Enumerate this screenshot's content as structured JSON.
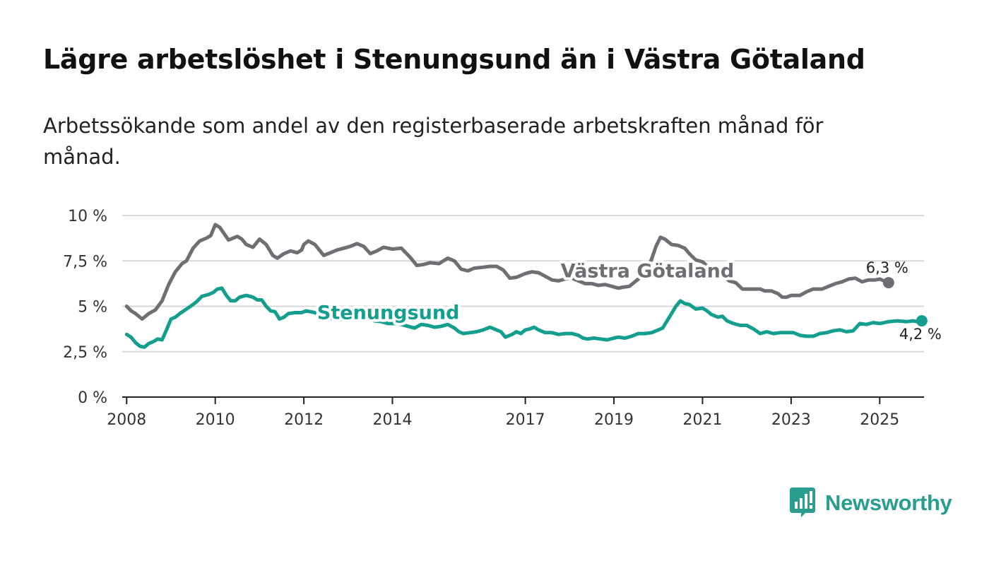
{
  "title": "Lägre arbetslöshet i Stenungsund än i Västra Götaland",
  "subtitle": "Arbetssökande som andel av den registerbaserade arbetskraften månad för månad.",
  "logo": {
    "text": "Newsworthy",
    "icon": "newsworthy-logo-icon"
  },
  "colors": {
    "vg": "#6f6e73",
    "sten": "#139e8d",
    "grid": "#d9d9d9",
    "axis": "#222222"
  },
  "chart_data": {
    "type": "line",
    "title": "Lägre arbetslöshet i Stenungsund än i Västra Götaland",
    "xlabel": "",
    "ylabel": "",
    "xlim": [
      2007.9,
      2026.0
    ],
    "ylim": [
      0,
      10
    ],
    "y_ticks": [
      {
        "value": 0,
        "label": "0 %"
      },
      {
        "value": 2.5,
        "label": "2,5 %"
      },
      {
        "value": 5,
        "label": "5 %"
      },
      {
        "value": 7.5,
        "label": "7,5 %"
      },
      {
        "value": 10,
        "label": "10 %"
      }
    ],
    "x_ticks": [
      {
        "value": 2008,
        "label": "2008"
      },
      {
        "value": 2010,
        "label": "2010"
      },
      {
        "value": 2012,
        "label": "2012"
      },
      {
        "value": 2014,
        "label": "2014"
      },
      {
        "value": 2017,
        "label": "2017"
      },
      {
        "value": 2019,
        "label": "2019"
      },
      {
        "value": 2021,
        "label": "2021"
      },
      {
        "value": 2023,
        "label": "2023"
      },
      {
        "value": 2025,
        "label": "2025"
      }
    ],
    "grid": true,
    "series": [
      {
        "name": "Västra Götaland",
        "label": "Västra Götaland",
        "end_label": "6,3 %",
        "end_value": 6.3,
        "points": [
          [
            2008.0,
            5.0
          ],
          [
            2008.1,
            4.75
          ],
          [
            2008.2,
            4.6
          ],
          [
            2008.35,
            4.3
          ],
          [
            2008.5,
            4.6
          ],
          [
            2008.65,
            4.8
          ],
          [
            2008.8,
            5.3
          ],
          [
            2008.95,
            6.2
          ],
          [
            2009.1,
            6.9
          ],
          [
            2009.25,
            7.35
          ],
          [
            2009.35,
            7.5
          ],
          [
            2009.5,
            8.2
          ],
          [
            2009.65,
            8.6
          ],
          [
            2009.8,
            8.75
          ],
          [
            2009.9,
            8.9
          ],
          [
            2010.0,
            9.5
          ],
          [
            2010.1,
            9.35
          ],
          [
            2010.3,
            8.65
          ],
          [
            2010.5,
            8.85
          ],
          [
            2010.6,
            8.7
          ],
          [
            2010.7,
            8.4
          ],
          [
            2010.85,
            8.25
          ],
          [
            2011.0,
            8.7
          ],
          [
            2011.15,
            8.4
          ],
          [
            2011.3,
            7.8
          ],
          [
            2011.4,
            7.65
          ],
          [
            2011.55,
            7.9
          ],
          [
            2011.7,
            8.05
          ],
          [
            2011.85,
            7.95
          ],
          [
            2011.95,
            8.1
          ],
          [
            2012.0,
            8.4
          ],
          [
            2012.1,
            8.6
          ],
          [
            2012.25,
            8.4
          ],
          [
            2012.45,
            7.8
          ],
          [
            2012.6,
            7.95
          ],
          [
            2012.75,
            8.1
          ],
          [
            2012.9,
            8.2
          ],
          [
            2013.05,
            8.3
          ],
          [
            2013.2,
            8.45
          ],
          [
            2013.35,
            8.3
          ],
          [
            2013.5,
            7.9
          ],
          [
            2013.65,
            8.05
          ],
          [
            2013.8,
            8.25
          ],
          [
            2014.0,
            8.15
          ],
          [
            2014.2,
            8.2
          ],
          [
            2014.4,
            7.7
          ],
          [
            2014.55,
            7.25
          ],
          [
            2014.7,
            7.3
          ],
          [
            2014.85,
            7.4
          ],
          [
            2015.05,
            7.35
          ],
          [
            2015.25,
            7.65
          ],
          [
            2015.4,
            7.5
          ],
          [
            2015.55,
            7.05
          ],
          [
            2015.7,
            6.95
          ],
          [
            2015.85,
            7.1
          ],
          [
            2016.05,
            7.15
          ],
          [
            2016.2,
            7.2
          ],
          [
            2016.35,
            7.2
          ],
          [
            2016.5,
            7.0
          ],
          [
            2016.65,
            6.55
          ],
          [
            2016.8,
            6.6
          ],
          [
            2017.0,
            6.8
          ],
          [
            2017.15,
            6.9
          ],
          [
            2017.3,
            6.85
          ],
          [
            2017.45,
            6.65
          ],
          [
            2017.6,
            6.45
          ],
          [
            2017.75,
            6.4
          ],
          [
            2017.9,
            6.5
          ],
          [
            2018.05,
            6.55
          ],
          [
            2018.2,
            6.4
          ],
          [
            2018.35,
            6.25
          ],
          [
            2018.5,
            6.25
          ],
          [
            2018.65,
            6.15
          ],
          [
            2018.8,
            6.2
          ],
          [
            2018.95,
            6.1
          ],
          [
            2019.1,
            6.0
          ],
          [
            2019.2,
            6.05
          ],
          [
            2019.35,
            6.1
          ],
          [
            2019.45,
            6.3
          ],
          [
            2019.55,
            6.5
          ],
          [
            2019.65,
            6.7
          ],
          [
            2019.75,
            7.05
          ],
          [
            2019.85,
            7.6
          ],
          [
            2019.95,
            8.3
          ],
          [
            2020.05,
            8.8
          ],
          [
            2020.15,
            8.7
          ],
          [
            2020.3,
            8.4
          ],
          [
            2020.45,
            8.35
          ],
          [
            2020.6,
            8.2
          ],
          [
            2020.7,
            7.9
          ],
          [
            2020.85,
            7.55
          ],
          [
            2021.0,
            7.45
          ],
          [
            2021.15,
            7.1
          ],
          [
            2021.3,
            6.9
          ],
          [
            2021.45,
            6.7
          ],
          [
            2021.6,
            6.4
          ],
          [
            2021.75,
            6.3
          ],
          [
            2021.9,
            5.95
          ],
          [
            2022.05,
            5.95
          ],
          [
            2022.2,
            5.95
          ],
          [
            2022.3,
            5.95
          ],
          [
            2022.4,
            5.85
          ],
          [
            2022.55,
            5.85
          ],
          [
            2022.7,
            5.7
          ],
          [
            2022.8,
            5.5
          ],
          [
            2022.9,
            5.5
          ],
          [
            2023.0,
            5.6
          ],
          [
            2023.2,
            5.6
          ],
          [
            2023.35,
            5.8
          ],
          [
            2023.5,
            5.95
          ],
          [
            2023.7,
            5.95
          ],
          [
            2023.85,
            6.1
          ],
          [
            2024.0,
            6.25
          ],
          [
            2024.15,
            6.35
          ],
          [
            2024.3,
            6.5
          ],
          [
            2024.45,
            6.55
          ],
          [
            2024.6,
            6.35
          ],
          [
            2024.75,
            6.45
          ],
          [
            2024.9,
            6.45
          ],
          [
            2025.0,
            6.5
          ],
          [
            2025.1,
            6.4
          ],
          [
            2025.2,
            6.3
          ]
        ]
      },
      {
        "name": "Stenungsund",
        "label": "Stenungsund",
        "end_label": "4,2 %",
        "end_value": 4.2,
        "points": [
          [
            2008.0,
            3.45
          ],
          [
            2008.1,
            3.3
          ],
          [
            2008.2,
            3.0
          ],
          [
            2008.3,
            2.8
          ],
          [
            2008.4,
            2.75
          ],
          [
            2008.5,
            2.95
          ],
          [
            2008.6,
            3.05
          ],
          [
            2008.7,
            3.2
          ],
          [
            2008.8,
            3.15
          ],
          [
            2008.9,
            3.7
          ],
          [
            2009.0,
            4.3
          ],
          [
            2009.1,
            4.4
          ],
          [
            2009.2,
            4.6
          ],
          [
            2009.35,
            4.85
          ],
          [
            2009.5,
            5.1
          ],
          [
            2009.6,
            5.3
          ],
          [
            2009.7,
            5.55
          ],
          [
            2009.85,
            5.65
          ],
          [
            2009.95,
            5.75
          ],
          [
            2010.05,
            5.95
          ],
          [
            2010.15,
            6.0
          ],
          [
            2010.25,
            5.6
          ],
          [
            2010.35,
            5.3
          ],
          [
            2010.45,
            5.3
          ],
          [
            2010.55,
            5.5
          ],
          [
            2010.7,
            5.6
          ],
          [
            2010.85,
            5.5
          ],
          [
            2010.95,
            5.35
          ],
          [
            2011.05,
            5.35
          ],
          [
            2011.15,
            5.0
          ],
          [
            2011.25,
            4.75
          ],
          [
            2011.35,
            4.7
          ],
          [
            2011.45,
            4.3
          ],
          [
            2011.55,
            4.4
          ],
          [
            2011.65,
            4.6
          ],
          [
            2011.8,
            4.65
          ],
          [
            2011.95,
            4.65
          ],
          [
            2012.05,
            4.75
          ],
          [
            2012.15,
            4.7
          ],
          [
            2012.25,
            4.65
          ],
          [
            2012.4,
            4.45
          ],
          [
            2012.5,
            4.4
          ],
          [
            2012.6,
            4.35
          ],
          [
            2012.7,
            4.25
          ],
          [
            2012.8,
            4.25
          ],
          [
            2012.9,
            4.3
          ],
          [
            2013.0,
            4.4
          ],
          [
            2013.15,
            4.5
          ],
          [
            2013.3,
            4.45
          ],
          [
            2013.45,
            4.3
          ],
          [
            2013.6,
            4.2
          ],
          [
            2013.75,
            4.15
          ],
          [
            2013.9,
            4.05
          ],
          [
            2014.05,
            4.05
          ],
          [
            2014.2,
            4.0
          ],
          [
            2014.35,
            3.9
          ],
          [
            2014.5,
            3.8
          ],
          [
            2014.65,
            4.0
          ],
          [
            2014.8,
            3.95
          ],
          [
            2014.95,
            3.85
          ],
          [
            2015.1,
            3.9
          ],
          [
            2015.25,
            4.0
          ],
          [
            2015.4,
            3.8
          ],
          [
            2015.5,
            3.6
          ],
          [
            2015.6,
            3.5
          ],
          [
            2015.75,
            3.55
          ],
          [
            2015.9,
            3.6
          ],
          [
            2016.05,
            3.7
          ],
          [
            2016.2,
            3.85
          ],
          [
            2016.35,
            3.7
          ],
          [
            2016.45,
            3.6
          ],
          [
            2016.55,
            3.3
          ],
          [
            2016.7,
            3.45
          ],
          [
            2016.8,
            3.6
          ],
          [
            2016.9,
            3.5
          ],
          [
            2017.0,
            3.7
          ],
          [
            2017.1,
            3.75
          ],
          [
            2017.2,
            3.85
          ],
          [
            2017.3,
            3.7
          ],
          [
            2017.45,
            3.55
          ],
          [
            2017.6,
            3.55
          ],
          [
            2017.75,
            3.45
          ],
          [
            2017.9,
            3.5
          ],
          [
            2018.05,
            3.5
          ],
          [
            2018.2,
            3.4
          ],
          [
            2018.3,
            3.25
          ],
          [
            2018.4,
            3.2
          ],
          [
            2018.55,
            3.25
          ],
          [
            2018.7,
            3.2
          ],
          [
            2018.85,
            3.15
          ],
          [
            2019.0,
            3.25
          ],
          [
            2019.1,
            3.3
          ],
          [
            2019.25,
            3.25
          ],
          [
            2019.4,
            3.35
          ],
          [
            2019.55,
            3.5
          ],
          [
            2019.7,
            3.5
          ],
          [
            2019.85,
            3.55
          ],
          [
            2020.0,
            3.7
          ],
          [
            2020.1,
            3.8
          ],
          [
            2020.2,
            4.2
          ],
          [
            2020.3,
            4.6
          ],
          [
            2020.4,
            5.0
          ],
          [
            2020.5,
            5.3
          ],
          [
            2020.6,
            5.15
          ],
          [
            2020.7,
            5.1
          ],
          [
            2020.85,
            4.85
          ],
          [
            2021.0,
            4.9
          ],
          [
            2021.1,
            4.75
          ],
          [
            2021.2,
            4.55
          ],
          [
            2021.35,
            4.4
          ],
          [
            2021.45,
            4.45
          ],
          [
            2021.55,
            4.2
          ],
          [
            2021.7,
            4.05
          ],
          [
            2021.85,
            3.95
          ],
          [
            2022.0,
            3.95
          ],
          [
            2022.15,
            3.75
          ],
          [
            2022.3,
            3.5
          ],
          [
            2022.45,
            3.6
          ],
          [
            2022.6,
            3.5
          ],
          [
            2022.75,
            3.55
          ],
          [
            2022.9,
            3.55
          ],
          [
            2023.05,
            3.55
          ],
          [
            2023.2,
            3.4
          ],
          [
            2023.35,
            3.35
          ],
          [
            2023.5,
            3.35
          ],
          [
            2023.65,
            3.5
          ],
          [
            2023.8,
            3.55
          ],
          [
            2023.95,
            3.65
          ],
          [
            2024.1,
            3.7
          ],
          [
            2024.25,
            3.6
          ],
          [
            2024.4,
            3.65
          ],
          [
            2024.55,
            4.05
          ],
          [
            2024.7,
            4.0
          ],
          [
            2024.85,
            4.1
          ],
          [
            2025.0,
            4.05
          ],
          [
            2025.1,
            4.1
          ],
          [
            2025.2,
            4.15
          ],
          [
            2025.4,
            4.2
          ],
          [
            2025.6,
            4.15
          ],
          [
            2025.75,
            4.2
          ],
          [
            2025.85,
            4.15
          ],
          [
            2025.95,
            4.2
          ]
        ]
      }
    ]
  }
}
